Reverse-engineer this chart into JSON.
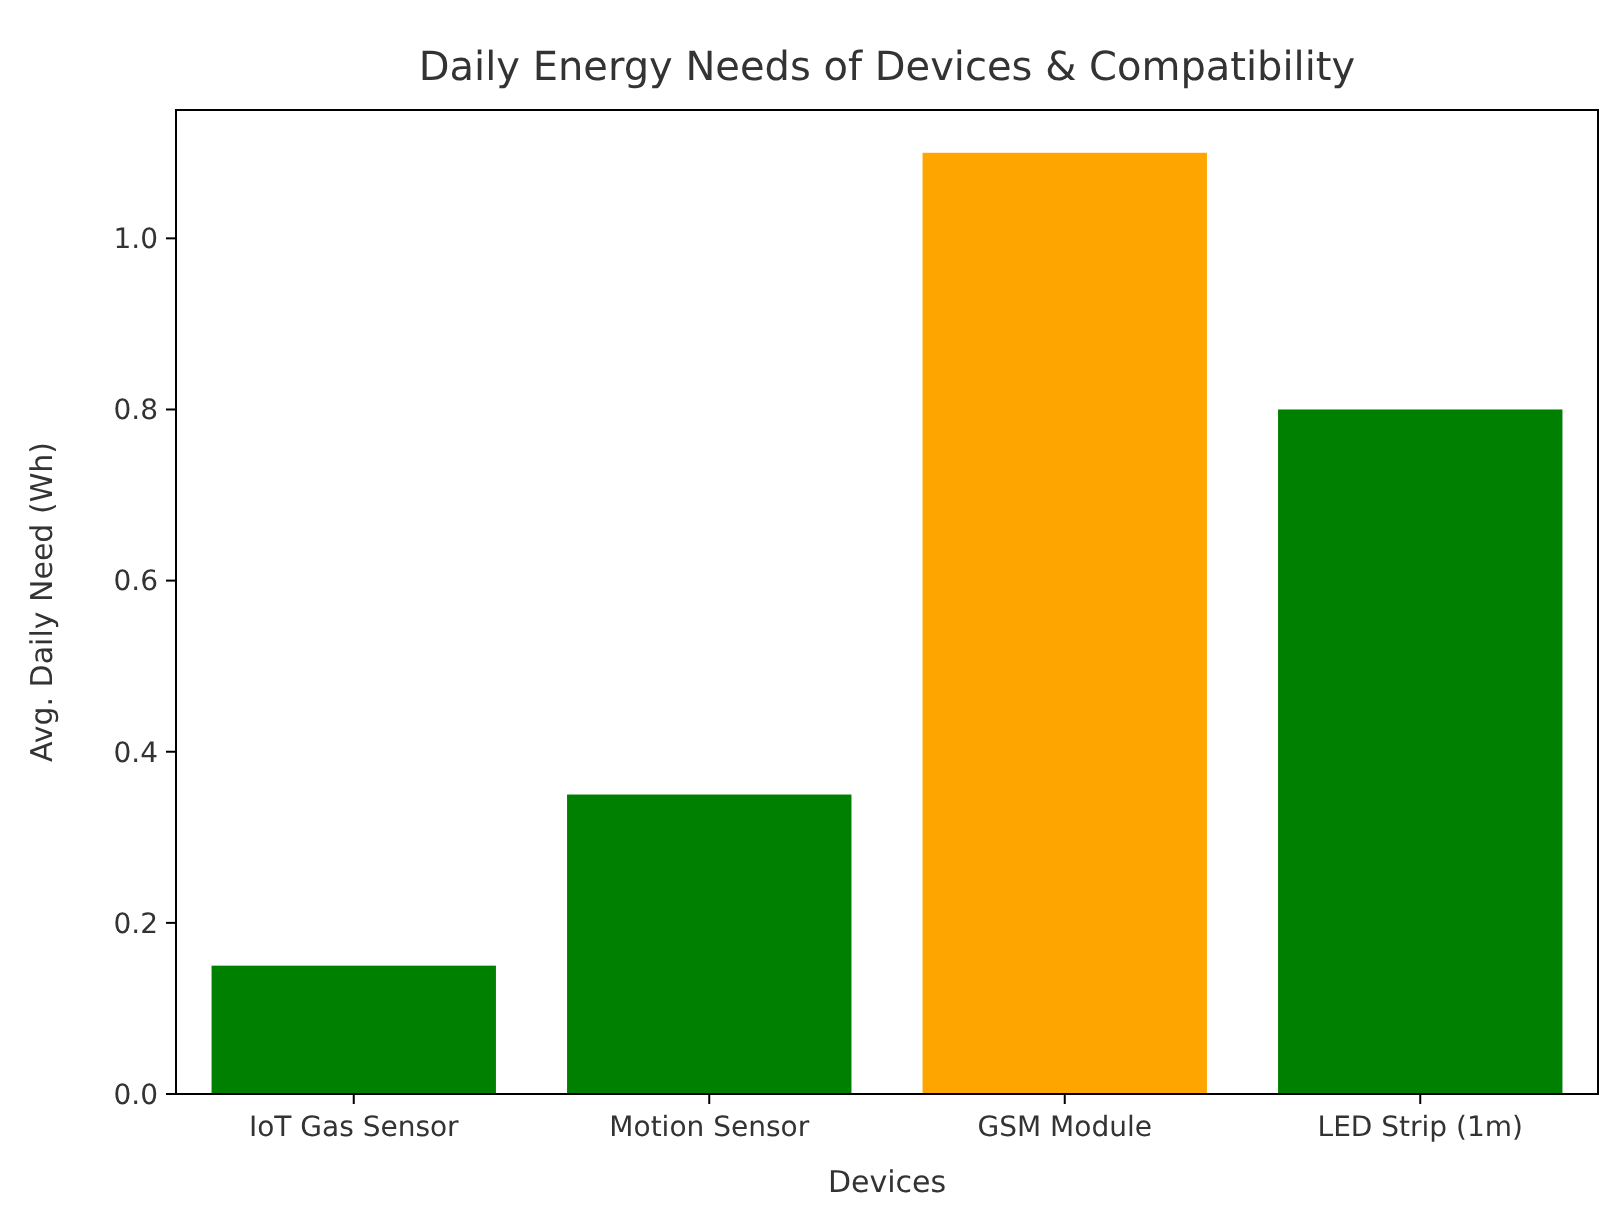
{
  "chart_data": {
    "type": "bar",
    "title": "Daily Energy Needs of Devices & Compatibility",
    "xlabel": "Devices",
    "ylabel": "Avg. Daily Need (Wh)",
    "categories": [
      "IoT Gas Sensor",
      "Motion Sensor",
      "GSM Module",
      "LED Strip (1m)"
    ],
    "values": [
      0.15,
      0.35,
      1.1,
      0.8
    ],
    "colors": [
      "#008000",
      "#008000",
      "#ffa500",
      "#008000"
    ],
    "ylim": [
      0,
      1.15
    ],
    "yticks": [
      {
        "value": 0,
        "label": "0.0"
      },
      0.2,
      0.4,
      0.6,
      0.8,
      {
        "value": 1,
        "label": "1.0"
      }
    ]
  }
}
